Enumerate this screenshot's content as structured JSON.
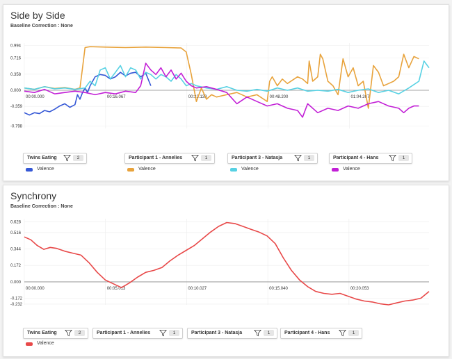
{
  "panels": [
    {
      "title": "Side by Side",
      "subtitle": "Baseline Correction : None",
      "legend": [
        {
          "name": "Twins Eating",
          "count": "2",
          "series_label": "Valence",
          "color": "#3558d6"
        },
        {
          "name": "Participant 1 - Annelies",
          "count": "1",
          "series_label": "Valence",
          "color": "#e8a33c"
        },
        {
          "name": "Participant 3 - Natasja",
          "count": "1",
          "series_label": "Valence",
          "color": "#57d1e3"
        },
        {
          "name": "Participant 4 - Hans",
          "count": "1",
          "series_label": "Valence",
          "color": "#c21fd6"
        }
      ]
    },
    {
      "title": "Synchrony",
      "subtitle": "Baseline Correction : None",
      "legend": [
        {
          "name": "Twins Eating",
          "count": "2",
          "series_label": "Valence",
          "color": "#e84848"
        },
        {
          "name": "Participant 1 - Annelies",
          "count": "1",
          "series_label": "",
          "color": ""
        },
        {
          "name": "Participant 3 - Natasja",
          "count": "1",
          "series_label": "",
          "color": ""
        },
        {
          "name": "Participant 4 - Hans",
          "count": "1",
          "series_label": "",
          "color": ""
        }
      ]
    }
  ],
  "chart_data": [
    {
      "type": "line",
      "title": "Side by Side",
      "y_ticks": [
        "0.994",
        "0.716",
        "0.358",
        "0.000",
        "-0.359",
        "-0.798"
      ],
      "y_tick_values": [
        0.994,
        0.716,
        0.358,
        0.0,
        -0.359,
        -0.798
      ],
      "x_ticks": [
        "00:00.000",
        "00:16.067",
        "00:32.133",
        "00:48.200",
        "01:04.267"
      ],
      "x_tick_values": [
        0,
        16.067,
        32.133,
        48.2,
        64.267
      ],
      "xlim": [
        0,
        80
      ],
      "ylim": [
        -0.85,
        1.05
      ],
      "series": [
        {
          "name": "Valence",
          "color": "#3558d6",
          "x": [
            0,
            1,
            2,
            3,
            4,
            5,
            6,
            7,
            8,
            9,
            10,
            10.5,
            11,
            11.5,
            12,
            12.5,
            13,
            13.5,
            14,
            15,
            16,
            17,
            18,
            19,
            20,
            21,
            22,
            23,
            24,
            25
          ],
          "y": [
            -0.5,
            -0.55,
            -0.5,
            -0.52,
            -0.45,
            -0.48,
            -0.42,
            -0.35,
            -0.3,
            -0.38,
            -0.32,
            -0.1,
            -0.2,
            -0.05,
            0.05,
            -0.05,
            0.1,
            0.2,
            0.3,
            0.35,
            0.33,
            0.25,
            0.3,
            0.4,
            0.32,
            0.38,
            0.4,
            0.3,
            0.38,
            0.1
          ]
        },
        {
          "name": "Valence",
          "color": "#e8a33c",
          "x": [
            0,
            2,
            4,
            6,
            8,
            10,
            11,
            11.5,
            12,
            13,
            16,
            20,
            24,
            28,
            31,
            32,
            33,
            34,
            35,
            36,
            37,
            38,
            40,
            42,
            44,
            46,
            48,
            48.5,
            49,
            50,
            51,
            52,
            54,
            55,
            56,
            56.3,
            57,
            58,
            58.5,
            59,
            60,
            61,
            62,
            63,
            64,
            65,
            66,
            67,
            68,
            69,
            70,
            71,
            72,
            73,
            74,
            75,
            76,
            77,
            78
          ],
          "y": [
            0.05,
            0.02,
            0.08,
            0.04,
            0.06,
            0.02,
            0.05,
            0.5,
            0.95,
            0.97,
            0.96,
            0.95,
            0.96,
            0.95,
            0.94,
            0.85,
            0.35,
            -0.25,
            0.05,
            -0.2,
            -0.1,
            -0.15,
            -0.1,
            -0.05,
            -0.15,
            -0.1,
            -0.25,
            0.2,
            0.3,
            0.1,
            0.25,
            0.15,
            0.3,
            0.25,
            0.15,
            0.65,
            0.2,
            0.3,
            0.8,
            0.7,
            0.2,
            0.1,
            -0.1,
            0.7,
            0.3,
            0.5,
            0.1,
            0.2,
            -0.4,
            0.55,
            0.4,
            0.1,
            0.15,
            0.2,
            0.3,
            0.8,
            0.5,
            0.75,
            0.7
          ]
        },
        {
          "name": "Valence",
          "color": "#57d1e3",
          "x": [
            0,
            2,
            4,
            6,
            8,
            10,
            12,
            13,
            14,
            15,
            16,
            17,
            18,
            19,
            20,
            21,
            22,
            23,
            24,
            25,
            26,
            27,
            28,
            29,
            30,
            31,
            32,
            33,
            34,
            36,
            38,
            40,
            42,
            44,
            46,
            48,
            50,
            52,
            54,
            56,
            58,
            60,
            62,
            64,
            66,
            68,
            70,
            72,
            74,
            76,
            78,
            79,
            80
          ],
          "y": [
            0.05,
            0.02,
            0.08,
            0.03,
            0.05,
            0.02,
            0.05,
            0.2,
            0.1,
            0.45,
            0.5,
            0.25,
            0.4,
            0.55,
            0.3,
            0.5,
            0.45,
            0.25,
            0.4,
            0.35,
            0.25,
            0.35,
            0.3,
            0.2,
            0.35,
            0.25,
            0.1,
            0.15,
            0.1,
            0.05,
            0.02,
            0.08,
            0.0,
            -0.02,
            0.02,
            -0.02,
            0.05,
            0.0,
            0.05,
            -0.02,
            0.0,
            -0.02,
            0.02,
            -0.05,
            0.0,
            0.03,
            -0.05,
            0.0,
            -0.08,
            0.05,
            0.2,
            0.65,
            0.5
          ]
        },
        {
          "name": "Valence",
          "color": "#c21fd6",
          "x": [
            0,
            2,
            4,
            6,
            8,
            10,
            12,
            14,
            16,
            18,
            20,
            22,
            23,
            24,
            25,
            26,
            27,
            28,
            29,
            30,
            31,
            32,
            33,
            34,
            36,
            38,
            40,
            42,
            44,
            46,
            48,
            50,
            52,
            54,
            55,
            56,
            58,
            60,
            62,
            64,
            66,
            68,
            70,
            72,
            74,
            75,
            76,
            77,
            78
          ],
          "y": [
            -0.02,
            -0.05,
            0.02,
            -0.08,
            -0.05,
            -0.02,
            -0.05,
            -0.1,
            -0.05,
            -0.08,
            -0.02,
            -0.05,
            0.1,
            0.6,
            0.45,
            0.35,
            0.5,
            0.3,
            0.45,
            0.25,
            0.38,
            0.2,
            0.1,
            0.05,
            0.08,
            0.02,
            -0.05,
            -0.3,
            -0.15,
            -0.25,
            -0.35,
            -0.3,
            -0.4,
            -0.45,
            -0.6,
            -0.3,
            -0.5,
            -0.4,
            -0.45,
            -0.35,
            -0.4,
            -0.3,
            -0.25,
            -0.35,
            -0.4,
            -0.5,
            -0.4,
            -0.35,
            -0.35
          ]
        }
      ]
    },
    {
      "type": "line",
      "title": "Synchrony",
      "y_ticks": [
        "0.628",
        "0.516",
        "0.344",
        "0.172",
        "0.000",
        "-0.172",
        "-0.232"
      ],
      "y_tick_values": [
        0.628,
        0.516,
        0.344,
        0.172,
        0.0,
        -0.172,
        -0.232
      ],
      "x_ticks": [
        "00:00.000",
        "00:05.013",
        "00:10.027",
        "00:15.040",
        "00:20.053"
      ],
      "x_tick_values": [
        0,
        5.013,
        10.027,
        15.04,
        20.053
      ],
      "xlim": [
        0,
        25
      ],
      "ylim": [
        -0.24,
        0.66
      ],
      "series": [
        {
          "name": "Valence",
          "color": "#e84848",
          "x": [
            0,
            0.4,
            0.8,
            1.2,
            1.6,
            2.0,
            2.5,
            3.0,
            3.5,
            4.0,
            4.5,
            5.0,
            5.5,
            6.0,
            6.5,
            7.0,
            7.5,
            8.0,
            8.5,
            9.0,
            9.5,
            10.0,
            10.5,
            11.0,
            11.5,
            12.0,
            12.5,
            13.0,
            13.5,
            14.0,
            14.5,
            15.0,
            15.5,
            16.0,
            16.5,
            17.0,
            17.5,
            18.0,
            18.5,
            19.0,
            19.5,
            20.0,
            20.5,
            21.0,
            21.5,
            22.0,
            22.5,
            23.0,
            23.5,
            24.0,
            24.5,
            25.0
          ],
          "y": [
            0.47,
            0.44,
            0.38,
            0.34,
            0.36,
            0.35,
            0.32,
            0.3,
            0.28,
            0.2,
            0.1,
            0.02,
            -0.02,
            -0.06,
            -0.01,
            0.05,
            0.1,
            0.12,
            0.15,
            0.22,
            0.28,
            0.33,
            0.38,
            0.45,
            0.52,
            0.58,
            0.62,
            0.61,
            0.58,
            0.55,
            0.52,
            0.48,
            0.4,
            0.25,
            0.12,
            0.02,
            -0.05,
            -0.1,
            -0.12,
            -0.13,
            -0.12,
            -0.15,
            -0.18,
            -0.2,
            -0.21,
            -0.23,
            -0.24,
            -0.22,
            -0.2,
            -0.19,
            -0.17,
            -0.1
          ]
        }
      ]
    }
  ]
}
